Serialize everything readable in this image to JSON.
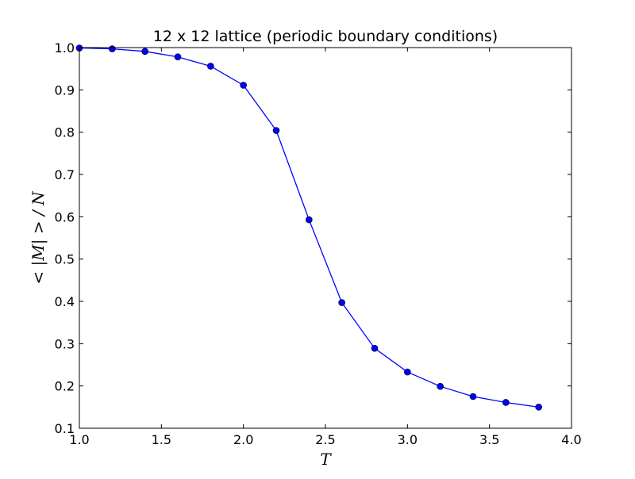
{
  "chart_data": {
    "type": "line",
    "title": "12 x 12 lattice (periodic boundary conditions)",
    "xlabel": "T",
    "ylabel": "< |M| > / N",
    "xlim": [
      1.0,
      4.0
    ],
    "ylim": [
      0.1,
      1.0
    ],
    "x_ticks": [
      1.0,
      1.5,
      2.0,
      2.5,
      3.0,
      3.5,
      4.0
    ],
    "x_tick_labels": [
      "1.0",
      "1.5",
      "2.0",
      "2.5",
      "3.0",
      "3.5",
      "4.0"
    ],
    "y_ticks": [
      0.1,
      0.2,
      0.3,
      0.4,
      0.5,
      0.6,
      0.7,
      0.8,
      0.9,
      1.0
    ],
    "y_tick_labels": [
      "0.1",
      "0.2",
      "0.3",
      "0.4",
      "0.5",
      "0.6",
      "0.7",
      "0.8",
      "0.9",
      "1.0"
    ],
    "grid": false,
    "series": [
      {
        "color": "#0000ff",
        "marker": "circle",
        "x": [
          1.0,
          1.2,
          1.4,
          1.6,
          1.8,
          2.0,
          2.2,
          2.4,
          2.6,
          2.8,
          3.0,
          3.2,
          3.4,
          3.6,
          3.8
        ],
        "y": [
          0.999,
          0.997,
          0.991,
          0.978,
          0.956,
          0.911,
          0.804,
          0.593,
          0.397,
          0.289,
          0.233,
          0.199,
          0.175,
          0.161,
          0.15
        ]
      }
    ]
  }
}
